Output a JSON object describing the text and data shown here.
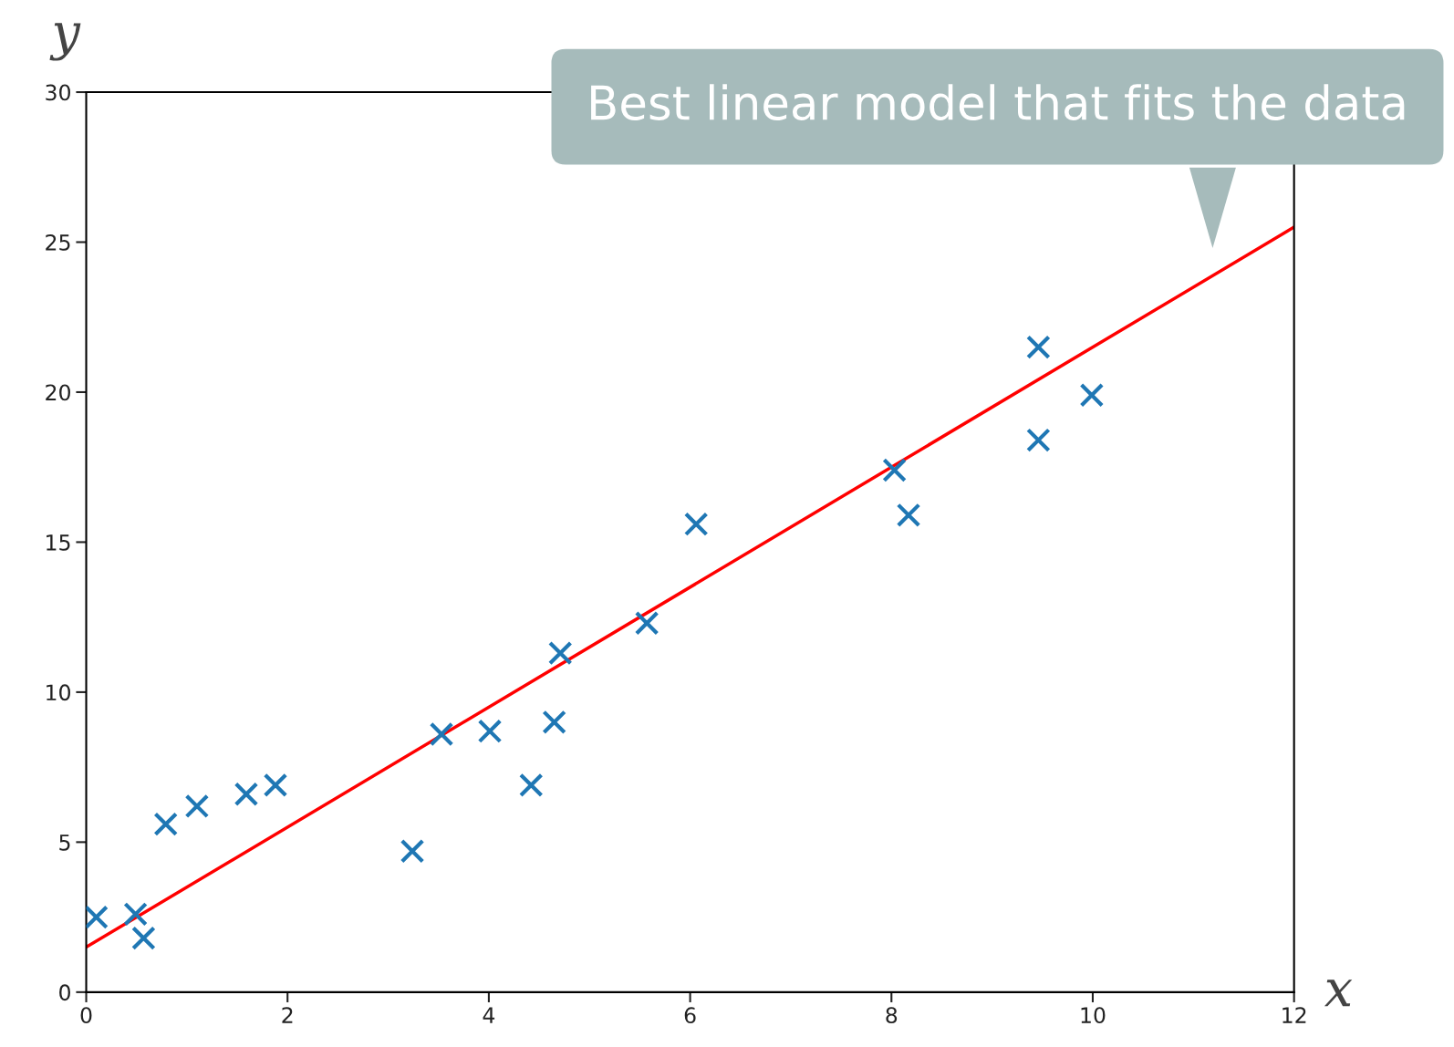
{
  "chart_data": {
    "type": "scatter",
    "xlabel": "x",
    "ylabel": "y",
    "xlim": [
      0,
      12
    ],
    "ylim": [
      0,
      30
    ],
    "xticks": [
      0,
      2,
      4,
      6,
      8,
      10,
      12
    ],
    "yticks": [
      0,
      5,
      10,
      15,
      20,
      25,
      30
    ],
    "grid": false,
    "series": [
      {
        "marker": "cross",
        "color": "#1f77b4",
        "x": [
          0.1,
          0.49,
          0.57,
          0.79,
          1.1,
          1.59,
          1.88,
          3.24,
          3.53,
          4.01,
          4.42,
          4.65,
          4.71,
          5.57,
          6.06,
          8.03,
          8.17,
          9.46,
          9.46,
          9.99
        ],
        "values": [
          2.5,
          2.6,
          1.8,
          5.6,
          6.2,
          6.6,
          6.9,
          4.7,
          8.6,
          8.7,
          6.9,
          9.0,
          11.3,
          12.3,
          15.6,
          17.4,
          15.9,
          21.5,
          18.4,
          19.9
        ]
      },
      {
        "type": "line",
        "color": "#ff0000",
        "line_style": "solid",
        "x": [
          0,
          12
        ],
        "values": [
          1.5,
          25.5
        ]
      }
    ],
    "annotations": [
      "Best linear model that fits the data"
    ]
  }
}
